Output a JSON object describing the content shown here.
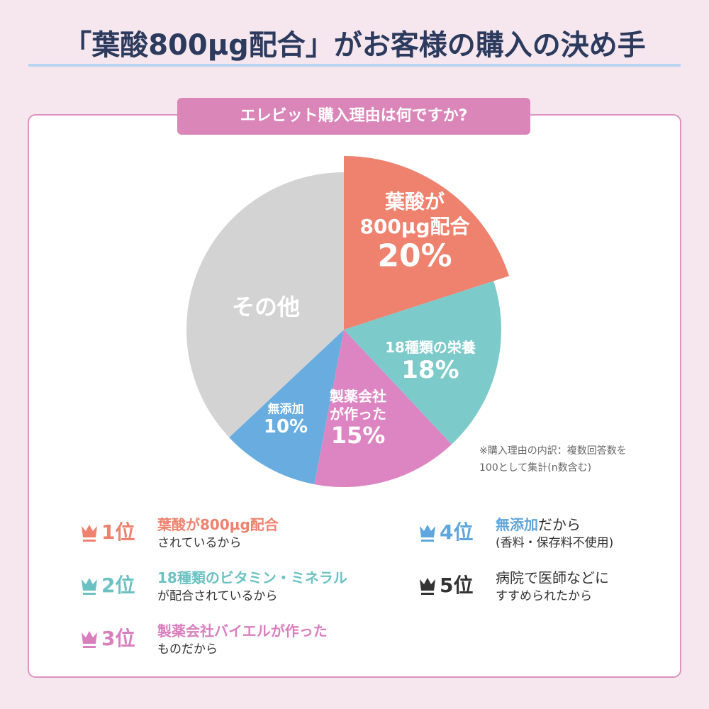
{
  "title": "「葉酸800μg配合」がお客様の購入の決め手",
  "chart_data": {
    "type": "pie",
    "title": "エレビット購入理由は何ですか?",
    "categories": [
      [
        "葉酸が",
        "800μg配合"
      ],
      [
        "18種類の栄養"
      ],
      [
        "製薬会社",
        "が作った"
      ],
      [
        "無添加"
      ],
      [
        "その他"
      ]
    ],
    "values": [
      20,
      18,
      15,
      10,
      37
    ],
    "value_labels": [
      "20%",
      "18%",
      "15%",
      "10%",
      null
    ],
    "colors": [
      "#ee826e",
      "#7ccaca",
      "#dd85c2",
      "#69ade0",
      "#d3d3d3"
    ],
    "note": [
      "※購入理由の内訳：複数回答数を",
      "100として集計(n数含む)"
    ]
  },
  "rankings": [
    {
      "rank": "1位",
      "color": "#ee826e",
      "line1": [
        {
          "text": "葉酸が800μg配合",
          "accent": true
        }
      ],
      "line2": "されているから"
    },
    {
      "rank": "2位",
      "color": "#6cc2c2",
      "line1": [
        {
          "text": "18種類のビタミン・ミネラル",
          "accent": true
        }
      ],
      "line2": "が配合されているから"
    },
    {
      "rank": "3位",
      "color": "#d97fbe",
      "line1": [
        {
          "text": "製薬会社バイエルが作った",
          "accent": true
        }
      ],
      "line2": "ものだから"
    },
    {
      "rank": "4位",
      "color": "#5ea6dc",
      "line1": [
        {
          "text": "無添加",
          "accent": true
        },
        {
          "text": "だから"
        }
      ],
      "line2": "(香料・保存料不使用)"
    },
    {
      "rank": "5位",
      "color": "#333333",
      "line1": [
        {
          "text": "病院で医師などに"
        }
      ],
      "line2": "すすめられたから"
    }
  ]
}
